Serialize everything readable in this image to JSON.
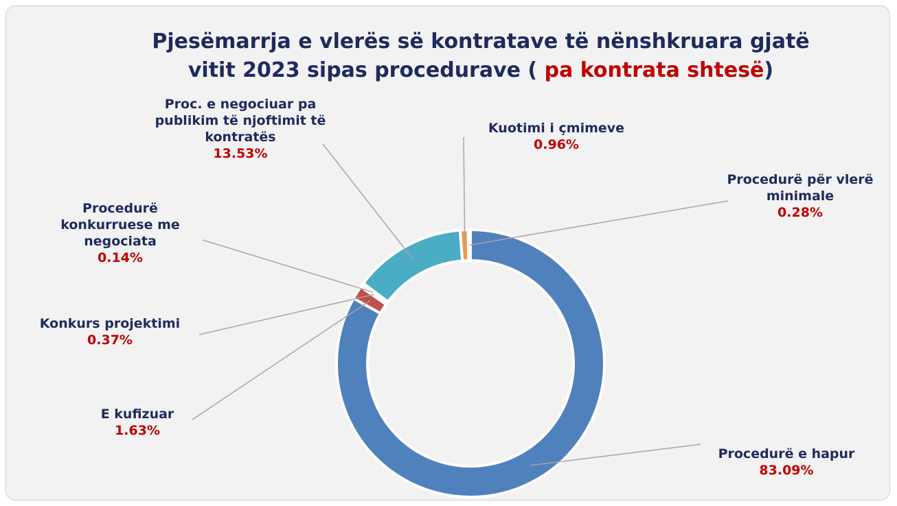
{
  "chart_data": {
    "type": "donut",
    "title": [
      "Pjesëmarrja e vlerës së kontratave të nënshkruara gjatë",
      "vitit 2023 sipas procedurave  (",
      "pa kontrata shtesë",
      ")"
    ],
    "categories": [
      "Procedurë e hapur",
      "E kufizuar",
      "Konkurs projektimi",
      "Procedurë konkurruese me negociata",
      "Proc. e negociuar pa publikim të njoftimit të kontratës",
      "Kuotimi i çmimeve",
      "Procedurë për vlerë minimale"
    ],
    "values": [
      83.09,
      1.63,
      0.37,
      0.14,
      13.53,
      0.96,
      0.28
    ],
    "value_labels": [
      "83.09%",
      "1.63%",
      "0.37%",
      "0.14%",
      "13.53%",
      "0.96%",
      "0.28%"
    ],
    "colors": [
      "#4f81bd",
      "#c0504d",
      "#9bbb59",
      "#8064a2",
      "#4bacc6",
      "#f79646",
      "#1f3864"
    ]
  }
}
